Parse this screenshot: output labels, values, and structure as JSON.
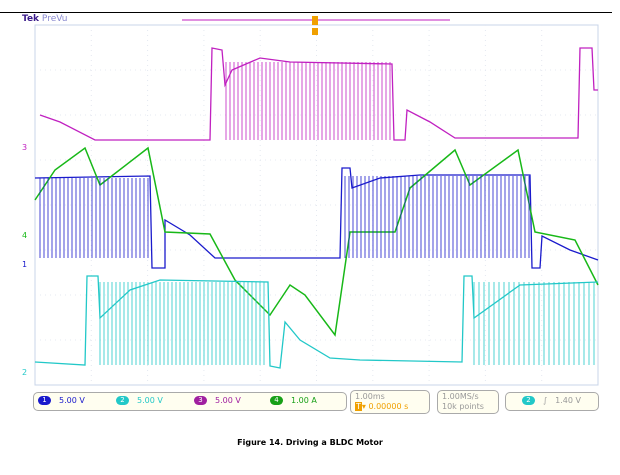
{
  "header": {
    "brand": "Tek",
    "mode": "PreVu"
  },
  "colors": {
    "ch1": "#1a1acc",
    "ch2": "#22c8c8",
    "ch3": "#c020c0",
    "ch4": "#18b818",
    "trigger": "#f0a000"
  },
  "channels": [
    {
      "num": "1",
      "scale": "5.00 V"
    },
    {
      "num": "2",
      "scale": "5.00 V"
    },
    {
      "num": "3",
      "scale": "5.00 V"
    },
    {
      "num": "4",
      "scale": "1.00 A"
    }
  ],
  "timebase": {
    "scale": "1.00ms",
    "trigger_pos": "0.00000 s"
  },
  "acquisition": {
    "rate": "1.00MS/s",
    "record": "10k points"
  },
  "trigger": {
    "source": "2",
    "slope": "rising-edge-icon",
    "level": "1.40 V"
  },
  "markers": {
    "ch3": "3",
    "ch4": "4",
    "ch1": "1",
    "ch2": "2",
    "trig": "T"
  },
  "caption": "Figure 14. Driving a BLDC Motor"
}
